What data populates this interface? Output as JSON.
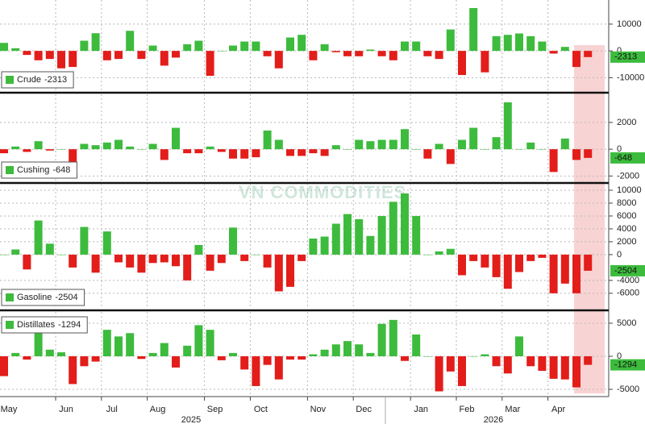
{
  "watermark": "VN COMMODITIES",
  "chart_data": [
    {
      "type": "bar",
      "color_up": "#3dbb3d",
      "color_down": "#e31d1a",
      "legend": "lower left",
      "series": [
        {
          "name": "Crude",
          "values": [
            3000,
            1000,
            -1500,
            -3500,
            -3000,
            -6500,
            -6000,
            3800,
            6600,
            -3500,
            -3000,
            7500,
            -3000,
            2000,
            -5500,
            -2500,
            2500,
            3800,
            -9300,
            0,
            2000,
            3500,
            3500,
            -2000,
            -6500,
            5000,
            6000,
            -3500,
            2500,
            -500,
            -2000,
            -2000,
            500,
            -2000,
            -3500,
            3500,
            3500,
            -2000,
            -3000,
            8000,
            -9000,
            16000,
            -8000,
            5500,
            6000,
            6500,
            5500,
            3500,
            -1000,
            1500,
            -6000,
            -2313
          ]
        }
      ],
      "ylim": [
        -15000,
        19000
      ],
      "yticks": [
        10000,
        0,
        -10000
      ],
      "grid": true
    },
    {
      "type": "bar",
      "color_up": "#3dbb3d",
      "color_down": "#e31d1a",
      "legend": "lower left",
      "series": [
        {
          "name": "Cushing",
          "values": [
            -300,
            200,
            -200,
            600,
            -100,
            0,
            -1500,
            400,
            300,
            500,
            700,
            200,
            0,
            400,
            -800,
            1600,
            -300,
            -300,
            200,
            -200,
            -700,
            -700,
            -600,
            1400,
            700,
            -500,
            -500,
            -300,
            -500,
            300,
            0,
            700,
            600,
            700,
            700,
            1500,
            0,
            -700,
            400,
            -1100,
            700,
            1600,
            0,
            900,
            3500,
            0,
            500,
            0,
            -1700,
            800,
            -800,
            -648
          ]
        }
      ],
      "ylim": [
        -2400,
        4100
      ],
      "yticks": [
        2000,
        0,
        -2000
      ],
      "grid": true
    },
    {
      "type": "bar",
      "color_up": "#3dbb3d",
      "color_down": "#e31d1a",
      "legend": "lower left",
      "series": [
        {
          "name": "Gasoline",
          "values": [
            0,
            800,
            -2300,
            5300,
            1700,
            0,
            -2000,
            4300,
            -2800,
            3600,
            -1200,
            -2000,
            -2800,
            -1300,
            -1200,
            -1800,
            -4000,
            1500,
            -2500,
            -1300,
            4200,
            -1000,
            0,
            -2000,
            -5700,
            -5000,
            -1000,
            2500,
            2800,
            4800,
            6300,
            5500,
            2900,
            6000,
            8200,
            9500,
            6000,
            0,
            500,
            900,
            -3200,
            -1000,
            -2000,
            -3500,
            -5300,
            -2700,
            -1000,
            -500,
            -6000,
            -4500,
            -6000,
            -2504
          ]
        }
      ],
      "ylim": [
        -8400,
        11000
      ],
      "yticks": [
        10000,
        8000,
        6000,
        4000,
        2000,
        0,
        -4000,
        -6000
      ],
      "grid": true
    },
    {
      "type": "bar",
      "color_up": "#3dbb3d",
      "color_down": "#e31d1a",
      "legend": "upper left",
      "series": [
        {
          "name": "Distillates",
          "values": [
            -3000,
            500,
            -500,
            3500,
            1000,
            600,
            -4200,
            -1500,
            -800,
            4000,
            3000,
            3500,
            -400,
            500,
            2000,
            -1700,
            1600,
            4700,
            4000,
            -600,
            500,
            -2000,
            -4500,
            -1300,
            -3500,
            -500,
            -500,
            300,
            1000,
            1800,
            2300,
            1800,
            500,
            4900,
            5500,
            -700,
            3300,
            0,
            -5300,
            -2300,
            -4500,
            0,
            300,
            -1500,
            -2600,
            3000,
            -1500,
            -2200,
            -3400,
            -3500,
            -4700,
            -1294
          ]
        }
      ],
      "ylim": [
        -5850,
        6700
      ],
      "yticks": [
        5000,
        0,
        -5000
      ],
      "grid": true,
      "categories": [
        "May",
        null,
        null,
        null,
        null,
        "Jun",
        null,
        null,
        null,
        "Jul",
        null,
        null,
        null,
        "Aug",
        null,
        null,
        null,
        null,
        "Sep",
        null,
        null,
        null,
        "Oct",
        null,
        null,
        null,
        null,
        "Nov",
        null,
        null,
        null,
        "Dec",
        null,
        null,
        null,
        null,
        "Jan",
        null,
        null,
        null,
        "Feb",
        null,
        null,
        null,
        "Mar",
        null,
        null,
        null,
        "Apr",
        null,
        null,
        null
      ],
      "years": [
        "2025",
        "2026"
      ]
    }
  ]
}
